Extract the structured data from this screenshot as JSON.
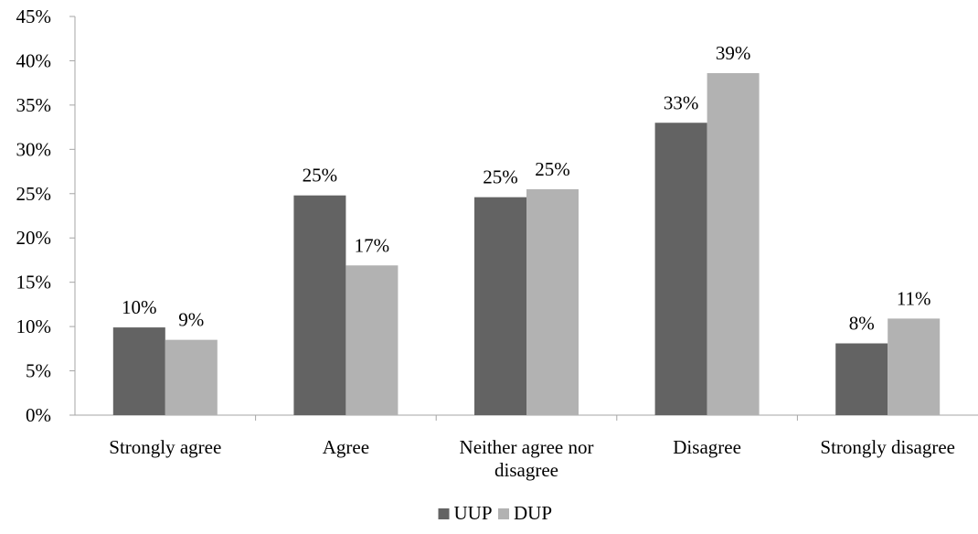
{
  "chart_data": {
    "type": "bar",
    "categories": [
      [
        "Strongly agree"
      ],
      [
        "Agree"
      ],
      [
        "Neither agree nor",
        "disagree"
      ],
      [
        "Disagree"
      ],
      [
        "Strongly disagree"
      ]
    ],
    "series": [
      {
        "name": "UUP",
        "color": "#636363",
        "values": [
          9.9,
          24.8,
          24.6,
          33.0,
          8.1
        ],
        "labels": [
          "10%",
          "25%",
          "25%",
          "33%",
          "8%"
        ]
      },
      {
        "name": "DUP",
        "color": "#b2b2b2",
        "values": [
          8.5,
          16.9,
          25.5,
          38.6,
          10.9
        ],
        "labels": [
          "9%",
          "17%",
          "25%",
          "39%",
          "11%"
        ]
      }
    ],
    "ylim": [
      0,
      45
    ],
    "yticks": [
      "0%",
      "5%",
      "10%",
      "15%",
      "20%",
      "25%",
      "30%",
      "35%",
      "40%",
      "45%"
    ],
    "ytick_values": [
      0,
      5,
      10,
      15,
      20,
      25,
      30,
      35,
      40,
      45
    ],
    "grid": false,
    "legend_position": "bottom"
  }
}
